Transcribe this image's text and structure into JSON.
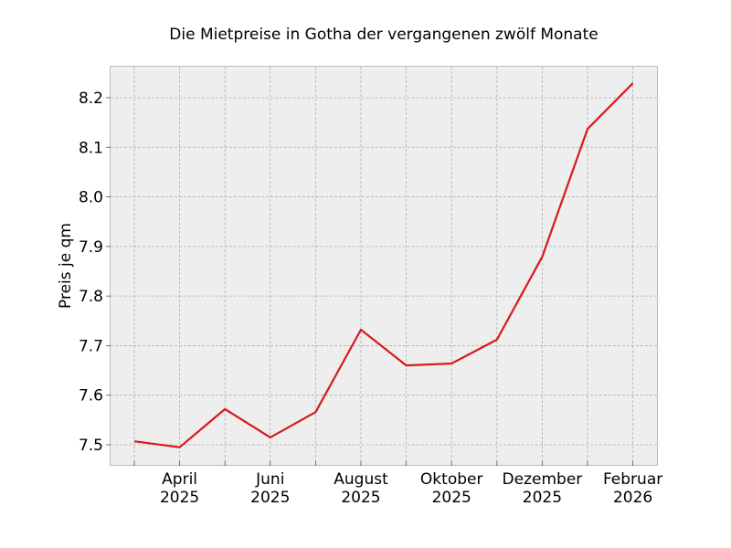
{
  "chart_data": {
    "type": "line",
    "title": "Die Mietpreise in Gotha der vergangenen zwölf Monate",
    "xlabel": "",
    "ylabel": "Preis je qm",
    "ylim": [
      7.458,
      8.265
    ],
    "yticks": [
      7.5,
      7.6,
      7.7,
      7.8,
      7.9,
      8.0,
      8.1,
      8.2
    ],
    "ytick_labels": [
      "7.5",
      "7.6",
      "7.7",
      "7.8",
      "7.9",
      "8.0",
      "8.1",
      "8.2"
    ],
    "xtick_labels": [
      {
        "line1": "April",
        "line2": "2025"
      },
      {
        "line1": "Juni",
        "line2": "2025"
      },
      {
        "line1": "August",
        "line2": "2025"
      },
      {
        "line1": "Oktober",
        "line2": "2025"
      },
      {
        "line1": "Dezember",
        "line2": "2025"
      },
      {
        "line1": "Februar",
        "line2": "2026"
      }
    ],
    "x": [
      "2025-03",
      "2025-04",
      "2025-05",
      "2025-06",
      "2025-07",
      "2025-08",
      "2025-09",
      "2025-10",
      "2025-11",
      "2025-12",
      "2026-01",
      "2026-02"
    ],
    "series": [
      {
        "name": "Mietpreis",
        "color": "#d7191c",
        "values": [
          7.507,
          7.495,
          7.572,
          7.515,
          7.566,
          7.732,
          7.66,
          7.664,
          7.712,
          7.879,
          8.137,
          8.229
        ]
      }
    ],
    "grid": true,
    "legend": null
  },
  "colors": {
    "plot_background": "#eeeeee",
    "grid": "#b0b0b0",
    "frame": "#bcbcbc",
    "line": "#d7191c"
  }
}
